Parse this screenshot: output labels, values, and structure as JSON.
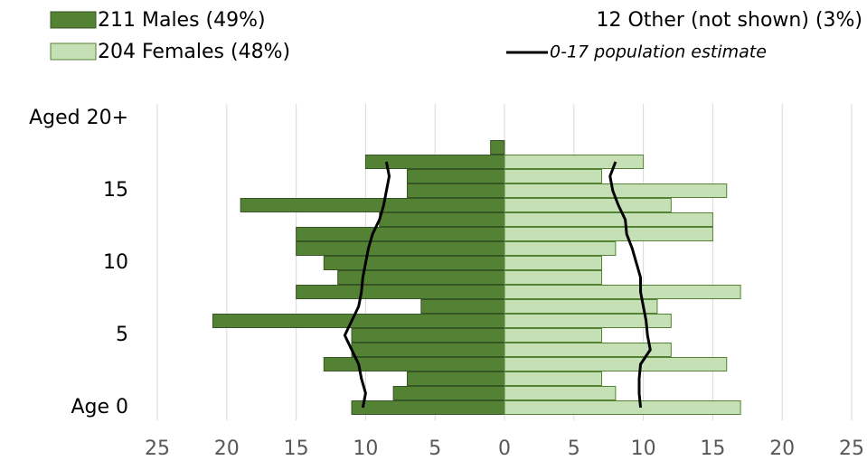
{
  "chart_data": {
    "type": "pyramid",
    "categories": [
      "Age 0",
      null,
      null,
      null,
      null,
      "5",
      null,
      null,
      null,
      null,
      "10",
      null,
      null,
      null,
      null,
      "15",
      null,
      null,
      null,
      null,
      "Aged 20+"
    ],
    "series": [
      {
        "name": "211 Males (49%)",
        "color": "#548235",
        "side": "left",
        "values": [
          11,
          8,
          7,
          13,
          11,
          11,
          21,
          6,
          15,
          12,
          13,
          15,
          15,
          9,
          19,
          7,
          7,
          10,
          1,
          0,
          0
        ]
      },
      {
        "name": "204 Females (48%)",
        "color": "#c5e0b4",
        "side": "right",
        "values": [
          17,
          8,
          7,
          16,
          12,
          7,
          12,
          11,
          17,
          7,
          7,
          8,
          15,
          15,
          12,
          16,
          7,
          10,
          0,
          0,
          0
        ]
      },
      {
        "name": "0-17 population estimate",
        "color": "#000000",
        "side": "left",
        "kind": "line",
        "values": [
          10.2,
          10,
          10.3,
          10.5,
          11,
          11.5,
          11,
          10.5,
          10.3,
          10.2,
          10,
          9.8,
          9.5,
          9,
          8.7,
          8.5,
          8.3,
          8.5,
          null,
          null,
          null
        ]
      },
      {
        "color": "#000000",
        "side": "right",
        "kind": "line",
        "values": [
          9.8,
          9.7,
          9.7,
          9.8,
          10.5,
          10.3,
          10.2,
          10,
          9.8,
          9.8,
          9.5,
          9.2,
          8.8,
          8.7,
          8.2,
          7.8,
          7.6,
          8,
          null,
          null,
          null
        ]
      }
    ],
    "other_note": "12 Other (not shown) (3%)",
    "xlim": [
      -25,
      25
    ],
    "xticks": [
      {
        "value": -25,
        "label": "25"
      },
      {
        "value": -20,
        "label": "20"
      },
      {
        "value": -15,
        "label": "15"
      },
      {
        "value": -10,
        "label": "10"
      },
      {
        "value": -5,
        "label": "5"
      },
      0,
      5,
      10,
      15,
      20,
      25
    ],
    "grid": true
  }
}
